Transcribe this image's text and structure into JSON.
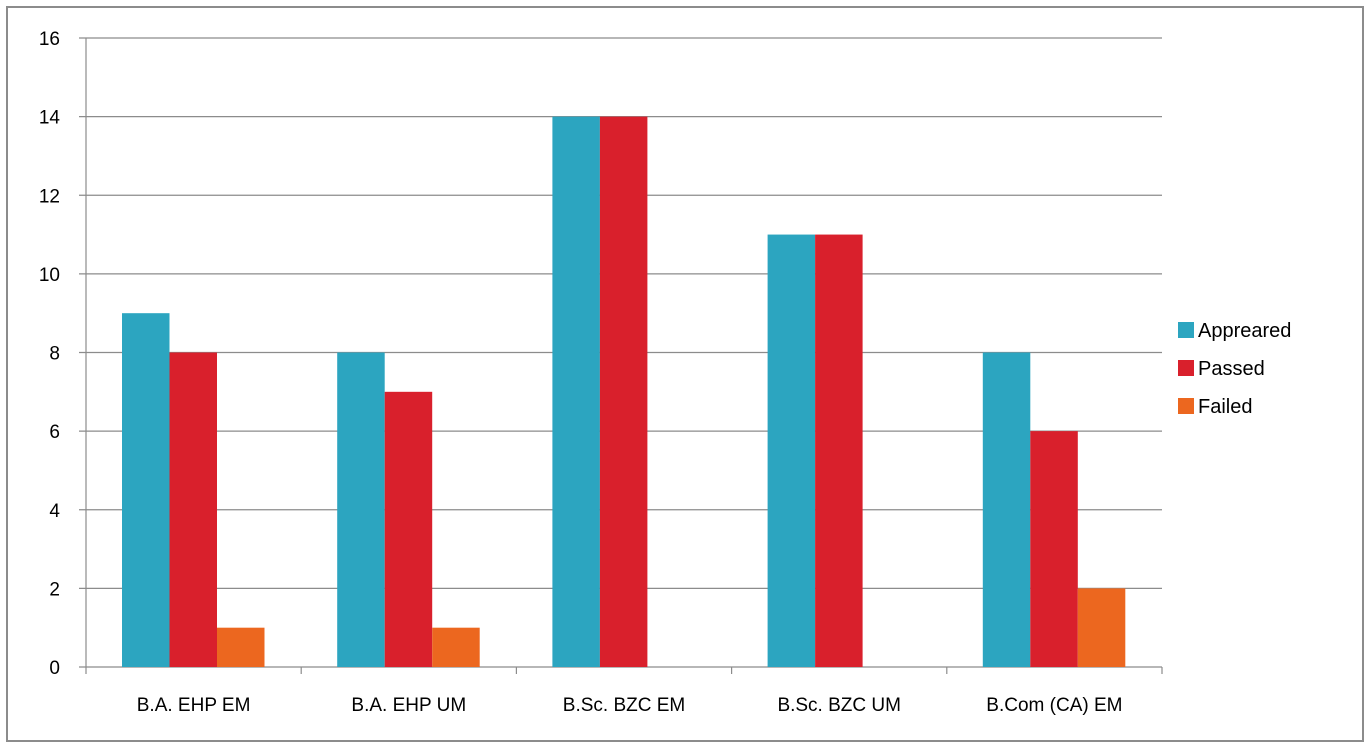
{
  "chart_data": {
    "type": "bar",
    "title": "",
    "xlabel": "",
    "ylabel": "",
    "categories": [
      "B.A. EHP EM",
      "B.A. EHP UM",
      "B.Sc. BZC EM",
      "B.Sc. BZC UM",
      "B.Com (CA) EM"
    ],
    "series": [
      {
        "name": "Appreared",
        "values": [
          9,
          8,
          14,
          11,
          8
        ],
        "color": "#2ca5c0"
      },
      {
        "name": "Passed",
        "values": [
          8,
          7,
          14,
          11,
          6
        ],
        "color": "#d9202c"
      },
      {
        "name": "Failed",
        "values": [
          1,
          1,
          0,
          0,
          2
        ],
        "color": "#ec671f"
      }
    ],
    "ylim": [
      0,
      16
    ],
    "yticks": [
      0,
      2,
      4,
      6,
      8,
      10,
      12,
      14,
      16
    ],
    "grid": true,
    "legend_position": "right"
  }
}
